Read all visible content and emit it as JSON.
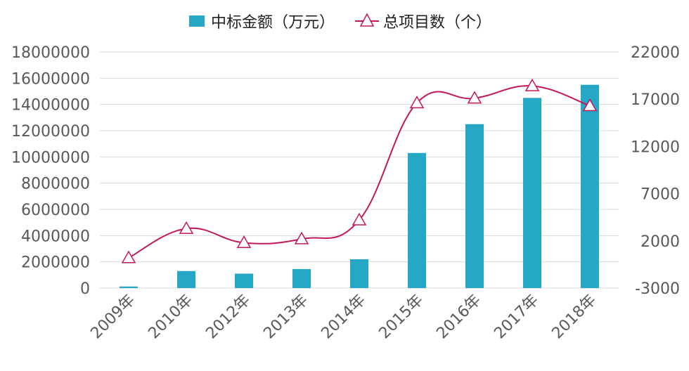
{
  "chart_data": {
    "type": "bar",
    "categories": [
      "2009年",
      "2010年",
      "2012年",
      "2013年",
      "2014年",
      "2015年",
      "2016年",
      "2017年",
      "2018年"
    ],
    "series": [
      {
        "name": "中标金额（万元）",
        "type": "bar",
        "axis": "left",
        "color": "#26a7c5",
        "values": [
          120000,
          1300000,
          1100000,
          1450000,
          2200000,
          10300000,
          12500000,
          14500000,
          15500000
        ]
      },
      {
        "name": "总项目数（个）",
        "type": "line",
        "axis": "right",
        "color": "#c2185b",
        "marker": "triangle",
        "values": [
          200,
          3300,
          1800,
          2200,
          4200,
          16600,
          17100,
          18400,
          16300
        ]
      }
    ],
    "y_left": {
      "lim": [
        0,
        18000000
      ],
      "ticks": [
        "0",
        "2000000",
        "4000000",
        "6000000",
        "8000000",
        "10000000",
        "12000000",
        "14000000",
        "16000000",
        "18000000"
      ]
    },
    "y_right": {
      "lim": [
        -3000,
        22000
      ],
      "ticks": [
        "-3000",
        "2000",
        "7000",
        "12000",
        "17000",
        "22000"
      ]
    },
    "legend_position": "top",
    "grid": true
  }
}
